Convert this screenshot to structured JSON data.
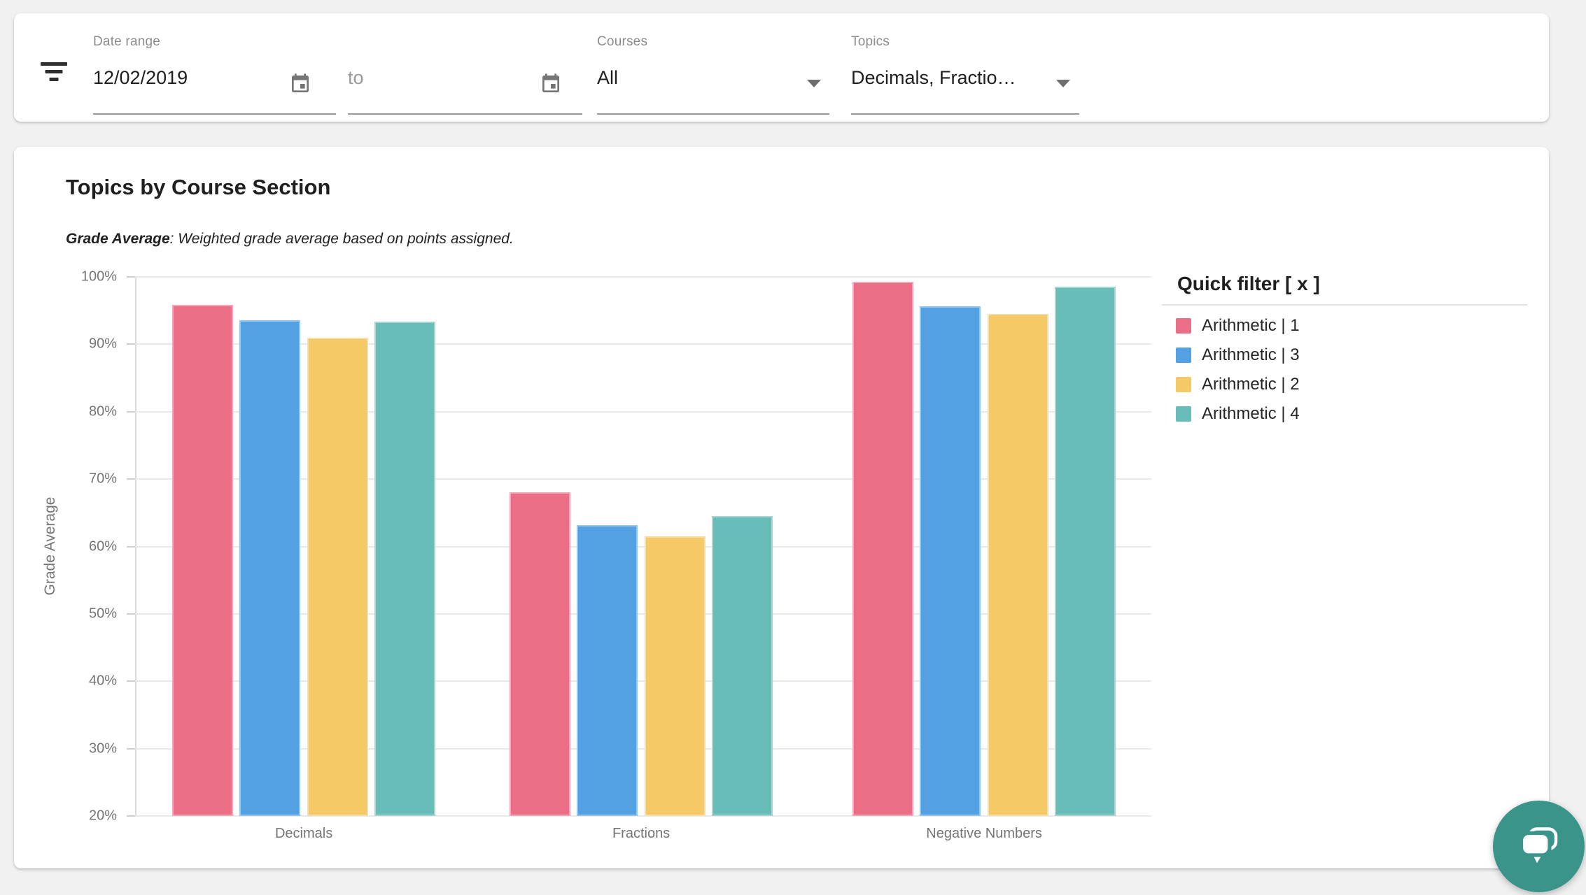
{
  "filter_bar": {
    "filter_icon": "filter-list-icon",
    "date_range": {
      "label": "Date range",
      "start_value": "12/02/2019",
      "end_value": "",
      "end_placeholder": "to",
      "calendar_icon": "calendar-icon"
    },
    "courses": {
      "label": "Courses",
      "value": "All",
      "dropdown_icon": "caret-down-icon"
    },
    "topics": {
      "label": "Topics",
      "value": "Decimals, Fractio…",
      "dropdown_icon": "caret-down-icon"
    }
  },
  "card": {
    "title": "Topics by Course Section",
    "subtitle_term": "Grade Average",
    "subtitle_rest": ": Weighted grade average based on points assigned."
  },
  "legend": {
    "title": "Quick filter [ x ]",
    "items": [
      {
        "label": "Arithmetic | 1",
        "color": "#EA6E86"
      },
      {
        "label": "Arithmetic | 3",
        "color": "#53A0E2"
      },
      {
        "label": "Arithmetic | 2",
        "color": "#F5C966"
      },
      {
        "label": "Arithmetic | 4",
        "color": "#69BDB9"
      }
    ]
  },
  "chart_data": {
    "type": "bar",
    "title": "Topics by Course Section",
    "xlabel": "",
    "ylabel": "Grade Average",
    "categories": [
      "Decimals",
      "Fractions",
      "Negative Numbers"
    ],
    "series": [
      {
        "name": "Arithmetic | 1",
        "color": "#EA6E86",
        "values": [
          95.8,
          68.0,
          99.3
        ]
      },
      {
        "name": "Arithmetic | 3",
        "color": "#53A0E2",
        "values": [
          93.6,
          63.2,
          95.6
        ]
      },
      {
        "name": "Arithmetic | 2",
        "color": "#F5C966",
        "values": [
          91.0,
          61.5,
          94.5
        ]
      },
      {
        "name": "Arithmetic | 4",
        "color": "#69BDB9",
        "values": [
          93.4,
          64.5,
          98.5
        ]
      }
    ],
    "ylim": [
      20,
      100
    ],
    "yticks": [
      100,
      90,
      80,
      70,
      60,
      50,
      40,
      30,
      20
    ],
    "ytick_format": "percent",
    "grid": true,
    "legend_position": "right"
  },
  "chat_widget": {
    "icon": "chat-bubbles-icon",
    "color": "#3B948A"
  }
}
